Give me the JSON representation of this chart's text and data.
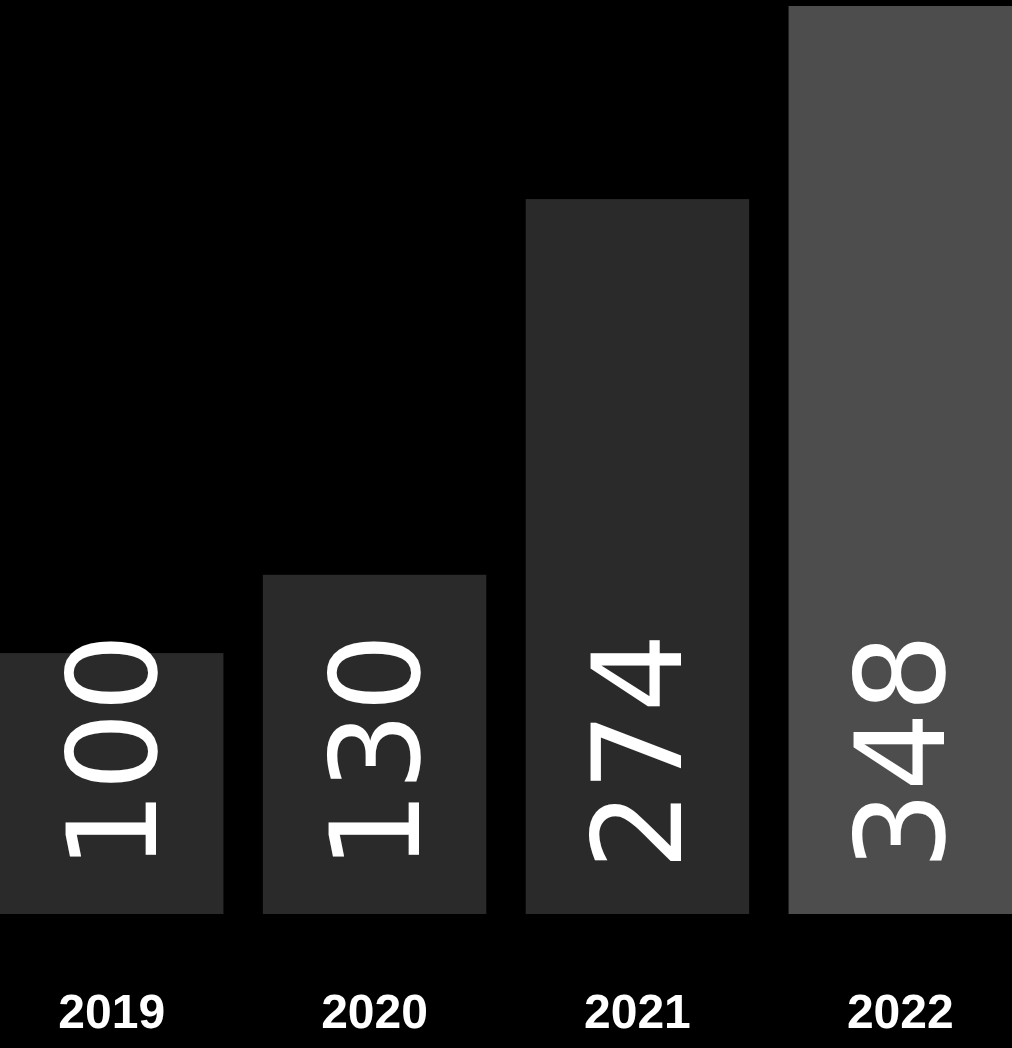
{
  "chart_data": {
    "type": "bar",
    "categories": [
      "2019",
      "2020",
      "2021",
      "2022"
    ],
    "values": [
      100,
      130,
      274,
      348
    ],
    "colors": [
      "#2a2a2a",
      "#2a2a2a",
      "#2a2a2a",
      "#4d4d4d"
    ],
    "data_labels": true
  }
}
